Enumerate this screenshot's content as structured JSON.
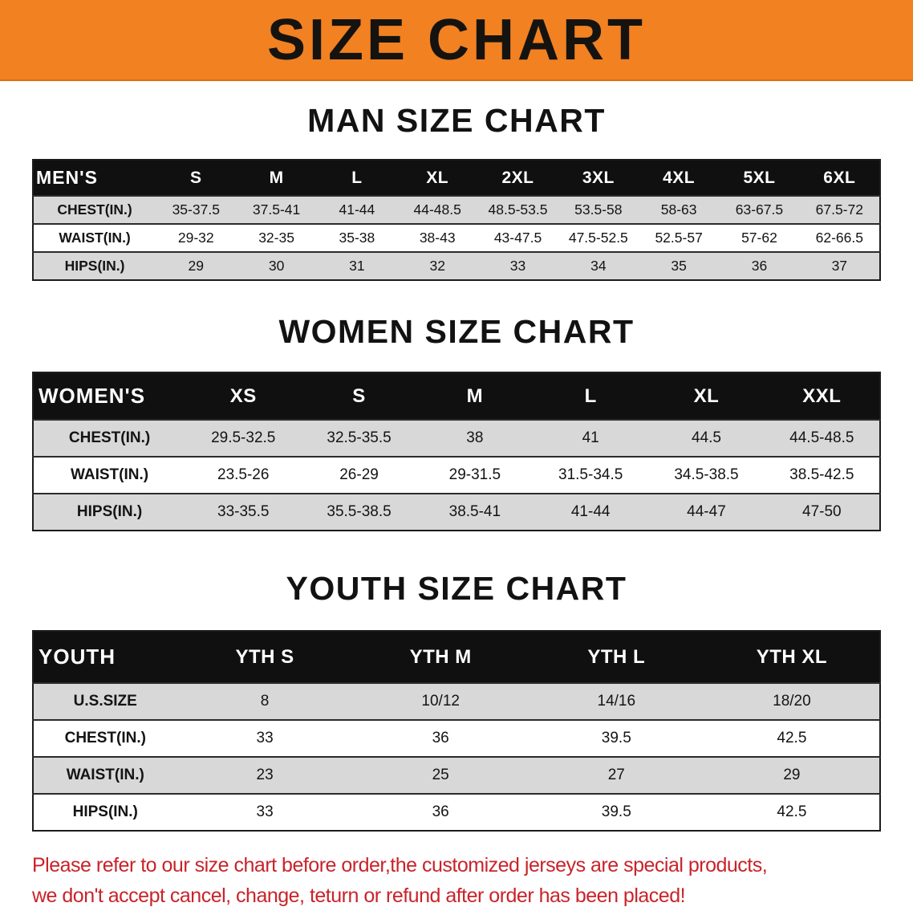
{
  "banner": {
    "title": "SIZE CHART"
  },
  "sections": [
    {
      "id": "men",
      "heading": "MAN SIZE CHART",
      "table": {
        "header": [
          "MEN'S",
          "S",
          "M",
          "L",
          "XL",
          "2XL",
          "3XL",
          "4XL",
          "5XL",
          "6XL"
        ],
        "rows": [
          [
            "CHEST(IN.)",
            "35-37.5",
            "37.5-41",
            "41-44",
            "44-48.5",
            "48.5-53.5",
            "53.5-58",
            "58-63",
            "63-67.5",
            "67.5-72"
          ],
          [
            "WAIST(IN.)",
            "29-32",
            "32-35",
            "35-38",
            "38-43",
            "43-47.5",
            "47.5-52.5",
            "52.5-57",
            "57-62",
            "62-66.5"
          ],
          [
            "HIPS(IN.)",
            "29",
            "30",
            "31",
            "32",
            "33",
            "34",
            "35",
            "36",
            "37"
          ]
        ]
      }
    },
    {
      "id": "women",
      "heading": "WOMEN SIZE CHART",
      "table": {
        "header": [
          "WOMEN'S",
          "XS",
          "S",
          "M",
          "L",
          "XL",
          "XXL"
        ],
        "rows": [
          [
            "CHEST(IN.)",
            "29.5-32.5",
            "32.5-35.5",
            "38",
            "41",
            "44.5",
            "44.5-48.5"
          ],
          [
            "WAIST(IN.)",
            "23.5-26",
            "26-29",
            "29-31.5",
            "31.5-34.5",
            "34.5-38.5",
            "38.5-42.5"
          ],
          [
            "HIPS(IN.)",
            "33-35.5",
            "35.5-38.5",
            "38.5-41",
            "41-44",
            "44-47",
            "47-50"
          ]
        ]
      }
    },
    {
      "id": "youth",
      "heading": "YOUTH SIZE CHART",
      "table": {
        "header": [
          "YOUTH",
          "YTH S",
          "YTH M",
          "YTH L",
          "YTH XL"
        ],
        "rows": [
          [
            "U.S.SIZE",
            "8",
            "10/12",
            "14/16",
            "18/20"
          ],
          [
            "CHEST(IN.)",
            "33",
            "36",
            "39.5",
            "42.5"
          ],
          [
            "WAIST(IN.)",
            "23",
            "25",
            "27",
            "29"
          ],
          [
            "HIPS(IN.)",
            "33",
            "36",
            "39.5",
            "42.5"
          ]
        ]
      }
    }
  ],
  "disclaimer": {
    "lines": [
      "Please refer to our size chart before order,the customized jerseys are special products,",
      "we don't accept cancel, change, teturn or refund after order has been placed!"
    ]
  },
  "colors": {
    "banner_orange": "#f28122",
    "header_black": "#101010",
    "row_gray": "#d8d8d8",
    "row_white": "#ffffff",
    "disclaimer_red": "#c9232a",
    "title_black": "#151310"
  }
}
